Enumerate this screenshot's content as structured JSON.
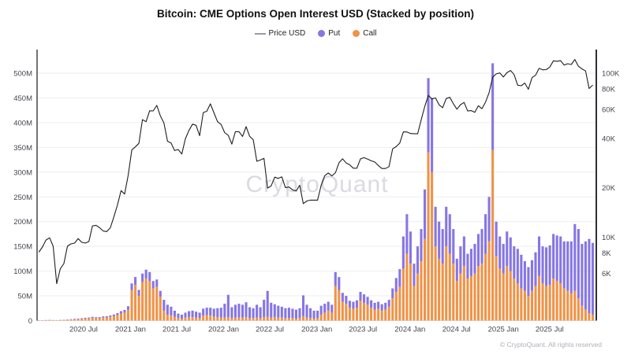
{
  "title": "Bitcoin: CME Options Open Interest USD (Stacked by position)",
  "legend": {
    "price_label": "Price USD",
    "put_label": "Put",
    "call_label": "Call",
    "price_color": "#9a9aa2",
    "put_color": "#8576e4",
    "call_color": "#ef9347"
  },
  "watermark": "CryptoQuant",
  "footer": "© CryptoQuant. All rights reserved",
  "colors": {
    "price_line": "#1f1f1f",
    "grid": "#eeeef3",
    "axis": "#17171d",
    "background": "#ffffff"
  },
  "chart_data": {
    "type": "combo",
    "bar_mode": "stacked",
    "title": "Bitcoin: CME Options Open Interest USD (Stacked by position)",
    "x_domain": [
      "2020-01-01",
      "2025-12-31"
    ],
    "x_domain_days": 2191,
    "x_start_day_offset": 7,
    "x_step_days": 14,
    "grid": "horizontal",
    "legend_position": "top",
    "x_ticks": [
      {
        "label": "2020 Jul",
        "day": 182
      },
      {
        "label": "2021 Jan",
        "day": 366
      },
      {
        "label": "2021 Jul",
        "day": 547
      },
      {
        "label": "2022 Jan",
        "day": 731
      },
      {
        "label": "2022 Jul",
        "day": 912
      },
      {
        "label": "2023 Jan",
        "day": 1096
      },
      {
        "label": "2023 Jul",
        "day": 1277
      },
      {
        "label": "2024 Jan",
        "day": 1461
      },
      {
        "label": "2024 Jul",
        "day": 1643
      },
      {
        "label": "2025 Jan",
        "day": 1827
      },
      {
        "label": "2025 Jul",
        "day": 2008
      }
    ],
    "left_axis": {
      "unit": "USD (millions)",
      "range_m": [
        0,
        500
      ],
      "ticks": [
        {
          "label": "0",
          "m": 0
        },
        {
          "label": "50M",
          "m": 50
        },
        {
          "label": "100M",
          "m": 100
        },
        {
          "label": "150M",
          "m": 150
        },
        {
          "label": "200M",
          "m": 200
        },
        {
          "label": "250M",
          "m": 250
        },
        {
          "label": "300M",
          "m": 300
        },
        {
          "label": "350M",
          "m": 350
        },
        {
          "label": "400M",
          "m": 400
        },
        {
          "label": "450M",
          "m": 450
        },
        {
          "label": "500M",
          "m": 500
        }
      ]
    },
    "right_axis": {
      "unit": "USD",
      "scale": "log",
      "range_usd": [
        3100,
        136000
      ],
      "ticks": [
        {
          "label": "6K",
          "usd": 6000
        },
        {
          "label": "8K",
          "usd": 8000
        },
        {
          "label": "10K",
          "usd": 10000
        },
        {
          "label": "20K",
          "usd": 20000
        },
        {
          "label": "40K",
          "usd": 40000
        },
        {
          "label": "60K",
          "usd": 60000
        },
        {
          "label": "80K",
          "usd": 80000
        },
        {
          "label": "100K",
          "usd": 100000
        }
      ]
    },
    "series": [
      {
        "name": "Call",
        "type": "bar",
        "axis": "left",
        "unit": "M USD",
        "color": "#ef9347",
        "values": [
          0.5,
          0.6,
          0.8,
          1,
          0.8,
          0.6,
          1,
          1.2,
          1.5,
          2,
          2.5,
          3,
          3.5,
          4,
          4.5,
          5.5,
          5,
          5,
          6,
          6.5,
          7.5,
          9,
          11,
          14,
          16,
          22,
          62,
          72,
          50,
          78,
          85,
          80,
          65,
          68,
          48,
          20,
          12,
          10,
          8,
          5,
          4,
          6,
          7,
          7,
          6,
          5,
          10,
          11,
          10,
          8,
          7,
          6,
          6,
          7,
          5,
          6,
          6,
          6,
          7,
          5,
          5,
          6,
          5,
          7,
          8,
          6,
          7,
          6,
          6,
          5,
          5,
          5,
          4,
          5,
          9,
          6,
          5,
          4,
          5,
          12,
          16,
          20,
          16,
          70,
          62,
          38,
          34,
          26,
          24,
          26,
          40,
          36,
          32,
          26,
          22,
          24,
          20,
          22,
          28,
          45,
          58,
          68,
          105,
          135,
          115,
          70,
          95,
          120,
          165,
          340,
          300,
          150,
          125,
          115,
          150,
          135,
          115,
          80,
          95,
          110,
          85,
          90,
          95,
          110,
          115,
          135,
          160,
          345,
          130,
          105,
          95,
          110,
          100,
          85,
          75,
          65,
          60,
          50,
          60,
          70,
          90,
          75,
          70,
          72,
          85,
          80,
          75,
          65,
          60,
          55,
          60,
          45,
          30,
          22,
          15,
          12
        ]
      },
      {
        "name": "Put",
        "type": "bar",
        "axis": "left",
        "unit": "M USD",
        "color": "#8576e4",
        "values": [
          0.2,
          0.2,
          0.3,
          0.4,
          0.3,
          0.3,
          0.4,
          0.5,
          0.6,
          0.8,
          1,
          1.2,
          1.3,
          1.5,
          1.7,
          2,
          1.8,
          2,
          2.5,
          2.3,
          2.8,
          3.2,
          4,
          5,
          5.5,
          7,
          13,
          16,
          12,
          17,
          18,
          18,
          15,
          15,
          12,
          22,
          20,
          18,
          12,
          9,
          8,
          10,
          12,
          13,
          12,
          11,
          14,
          15,
          16,
          16,
          18,
          20,
          28,
          45,
          22,
          26,
          28,
          26,
          30,
          22,
          20,
          26,
          22,
          35,
          52,
          30,
          26,
          24,
          22,
          20,
          21,
          19,
          18,
          20,
          42,
          26,
          20,
          16,
          15,
          18,
          18,
          18,
          16,
          28,
          26,
          18,
          16,
          14,
          14,
          15,
          18,
          17,
          16,
          15,
          14,
          14,
          13,
          14,
          14,
          20,
          28,
          36,
          65,
          80,
          65,
          45,
          55,
          65,
          100,
          150,
          150,
          80,
          75,
          70,
          80,
          80,
          70,
          45,
          55,
          60,
          50,
          55,
          60,
          65,
          70,
          80,
          90,
          175,
          70,
          65,
          60,
          70,
          68,
          65,
          70,
          68,
          60,
          58,
          62,
          68,
          80,
          75,
          78,
          80,
          90,
          92,
          95,
          95,
          100,
          105,
          135,
          140,
          125,
          138,
          150,
          145
        ]
      },
      {
        "name": "Price USD",
        "type": "line",
        "axis": "right",
        "unit": "K USD",
        "color": "#1f1f1f",
        "values": [
          8.1,
          8.7,
          9.6,
          9.9,
          8.8,
          5.2,
          6.4,
          6.9,
          8.8,
          9.1,
          9.2,
          9.8,
          9.3,
          9.2,
          9.4,
          11.7,
          11.8,
          11.4,
          10.9,
          10.8,
          11.4,
          13.3,
          15.7,
          19.2,
          18.3,
          23.8,
          34,
          35.5,
          37.3,
          52,
          50.5,
          58.9,
          58.8,
          63.5,
          54.8,
          49.7,
          38.4,
          37.4,
          33.7,
          34.2,
          32.1,
          39.7,
          44.7,
          48.8,
          48,
          41.5,
          57.4,
          58.5,
          64.9,
          57.2,
          50.5,
          48.6,
          43.4,
          41.7,
          36.9,
          43.9,
          43.9,
          41.1,
          47.1,
          41.1,
          39.2,
          29,
          29.5,
          30.2,
          19.9,
          20.5,
          23.2,
          22.8,
          23.3,
          20,
          20.2,
          19.4,
          19.1,
          20.7,
          16,
          16.6,
          16.8,
          16.8,
          16.8,
          20.7,
          23.7,
          24.6,
          23.6,
          24.7,
          28.4,
          30,
          28.3,
          27.6,
          26.3,
          26.3,
          30,
          30.5,
          29.9,
          29.2,
          28.7,
          27.3,
          26.2,
          26.2,
          26.9,
          34.5,
          35.6,
          37.4,
          43.8,
          43.7,
          42.8,
          42.7,
          42.6,
          51.8,
          62.5,
          73.1,
          69.4,
          70.6,
          64,
          61.5,
          69.9,
          71.1,
          65,
          60.2,
          64.1,
          66.2,
          58.7,
          59,
          57.6,
          63.2,
          60.6,
          66.6,
          75.9,
          94.3,
          98.8,
          100.2,
          94.6,
          100.5,
          103.7,
          97.9,
          84.3,
          83.7,
          86.9,
          79.6,
          93.7,
          97,
          106.8,
          104.6,
          104.9,
          108.8,
          118.7,
          117.9,
          119,
          111.9,
          114,
          112.7,
          121,
          110,
          106,
          103,
          80.5,
          84.5
        ]
      }
    ]
  }
}
